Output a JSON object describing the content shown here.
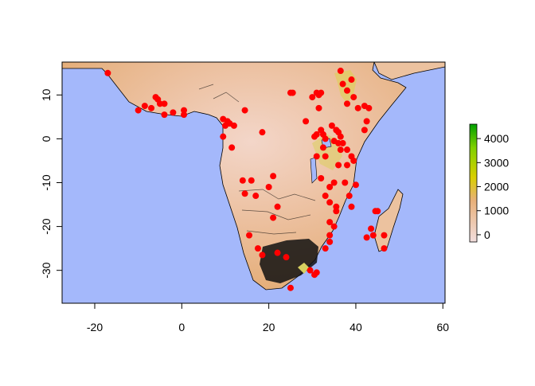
{
  "colors": {
    "ocean": "#a4b8fb",
    "land_low": "#f2d2c4",
    "land_mid": "#e8b07a",
    "land_high": "#dfb84a",
    "points": "#ff0000",
    "borders": "#000000"
  },
  "map": {
    "x_ticks": [
      "-20",
      "0",
      "20",
      "40",
      "60"
    ],
    "y_ticks": [
      "10",
      "0",
      "-10",
      "-20",
      "-30"
    ],
    "x_range": [
      -27.5,
      60.5
    ],
    "y_range": [
      -37.5,
      17.5
    ]
  },
  "legend": {
    "ticks": [
      "4000",
      "3000",
      "2000",
      "1000",
      "0"
    ],
    "range": [
      -300,
      4600
    ],
    "gradient": [
      "#f2dede",
      "#e8b07a",
      "#d9cf00",
      "#80d000",
      "#00a000"
    ]
  }
}
